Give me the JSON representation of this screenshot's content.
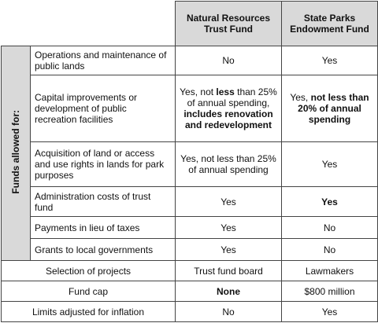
{
  "header": {
    "columns": [
      "Natural Resources Trust Fund",
      "State Parks Endowment Fund"
    ]
  },
  "group_label": "Funds allowed for:",
  "grouped_rows": [
    {
      "label": "Operations and maintenance of public lands",
      "cells": [
        [
          {
            "text": "No",
            "bold": false
          }
        ],
        [
          {
            "text": "Yes",
            "bold": false
          }
        ]
      ]
    },
    {
      "label": "Capital improvements or development of public recreation facilities",
      "cells": [
        [
          {
            "text": "Yes, not ",
            "bold": false
          },
          {
            "text": "less",
            "bold": true
          },
          {
            "text": " than 25% of annual spending, ",
            "bold": false
          },
          {
            "text": "includes renovation and redevelopment",
            "bold": true
          }
        ],
        [
          {
            "text": "Yes, ",
            "bold": false
          },
          {
            "text": "not less than 20% of annual spending",
            "bold": true
          }
        ]
      ]
    },
    {
      "label": "Acquisition of land or access and use rights in lands for park purposes",
      "cells": [
        [
          {
            "text": "Yes, not less than 25% of annual spending",
            "bold": false
          }
        ],
        [
          {
            "text": "Yes",
            "bold": false
          }
        ]
      ]
    },
    {
      "label": "Administration costs of trust fund",
      "cells": [
        [
          {
            "text": "Yes",
            "bold": false
          }
        ],
        [
          {
            "text": "Yes",
            "bold": true
          }
        ]
      ]
    },
    {
      "label": "Payments in lieu of taxes",
      "cells": [
        [
          {
            "text": "Yes",
            "bold": false
          }
        ],
        [
          {
            "text": "No",
            "bold": false
          }
        ]
      ]
    },
    {
      "label": "Grants to local governments",
      "cells": [
        [
          {
            "text": "Yes",
            "bold": false
          }
        ],
        [
          {
            "text": "No",
            "bold": false
          }
        ]
      ]
    }
  ],
  "other_rows": [
    {
      "label": "Selection of projects",
      "cells": [
        [
          {
            "text": "Trust fund board",
            "bold": false
          }
        ],
        [
          {
            "text": "Lawmakers",
            "bold": false
          }
        ]
      ]
    },
    {
      "label": "Fund cap",
      "cells": [
        [
          {
            "text": "None",
            "bold": true
          }
        ],
        [
          {
            "text": "$800 million",
            "bold": false
          }
        ]
      ]
    },
    {
      "label": "Limits adjusted for inflation",
      "cells": [
        [
          {
            "text": "No",
            "bold": false
          }
        ],
        [
          {
            "text": "Yes",
            "bold": false
          }
        ]
      ]
    }
  ]
}
